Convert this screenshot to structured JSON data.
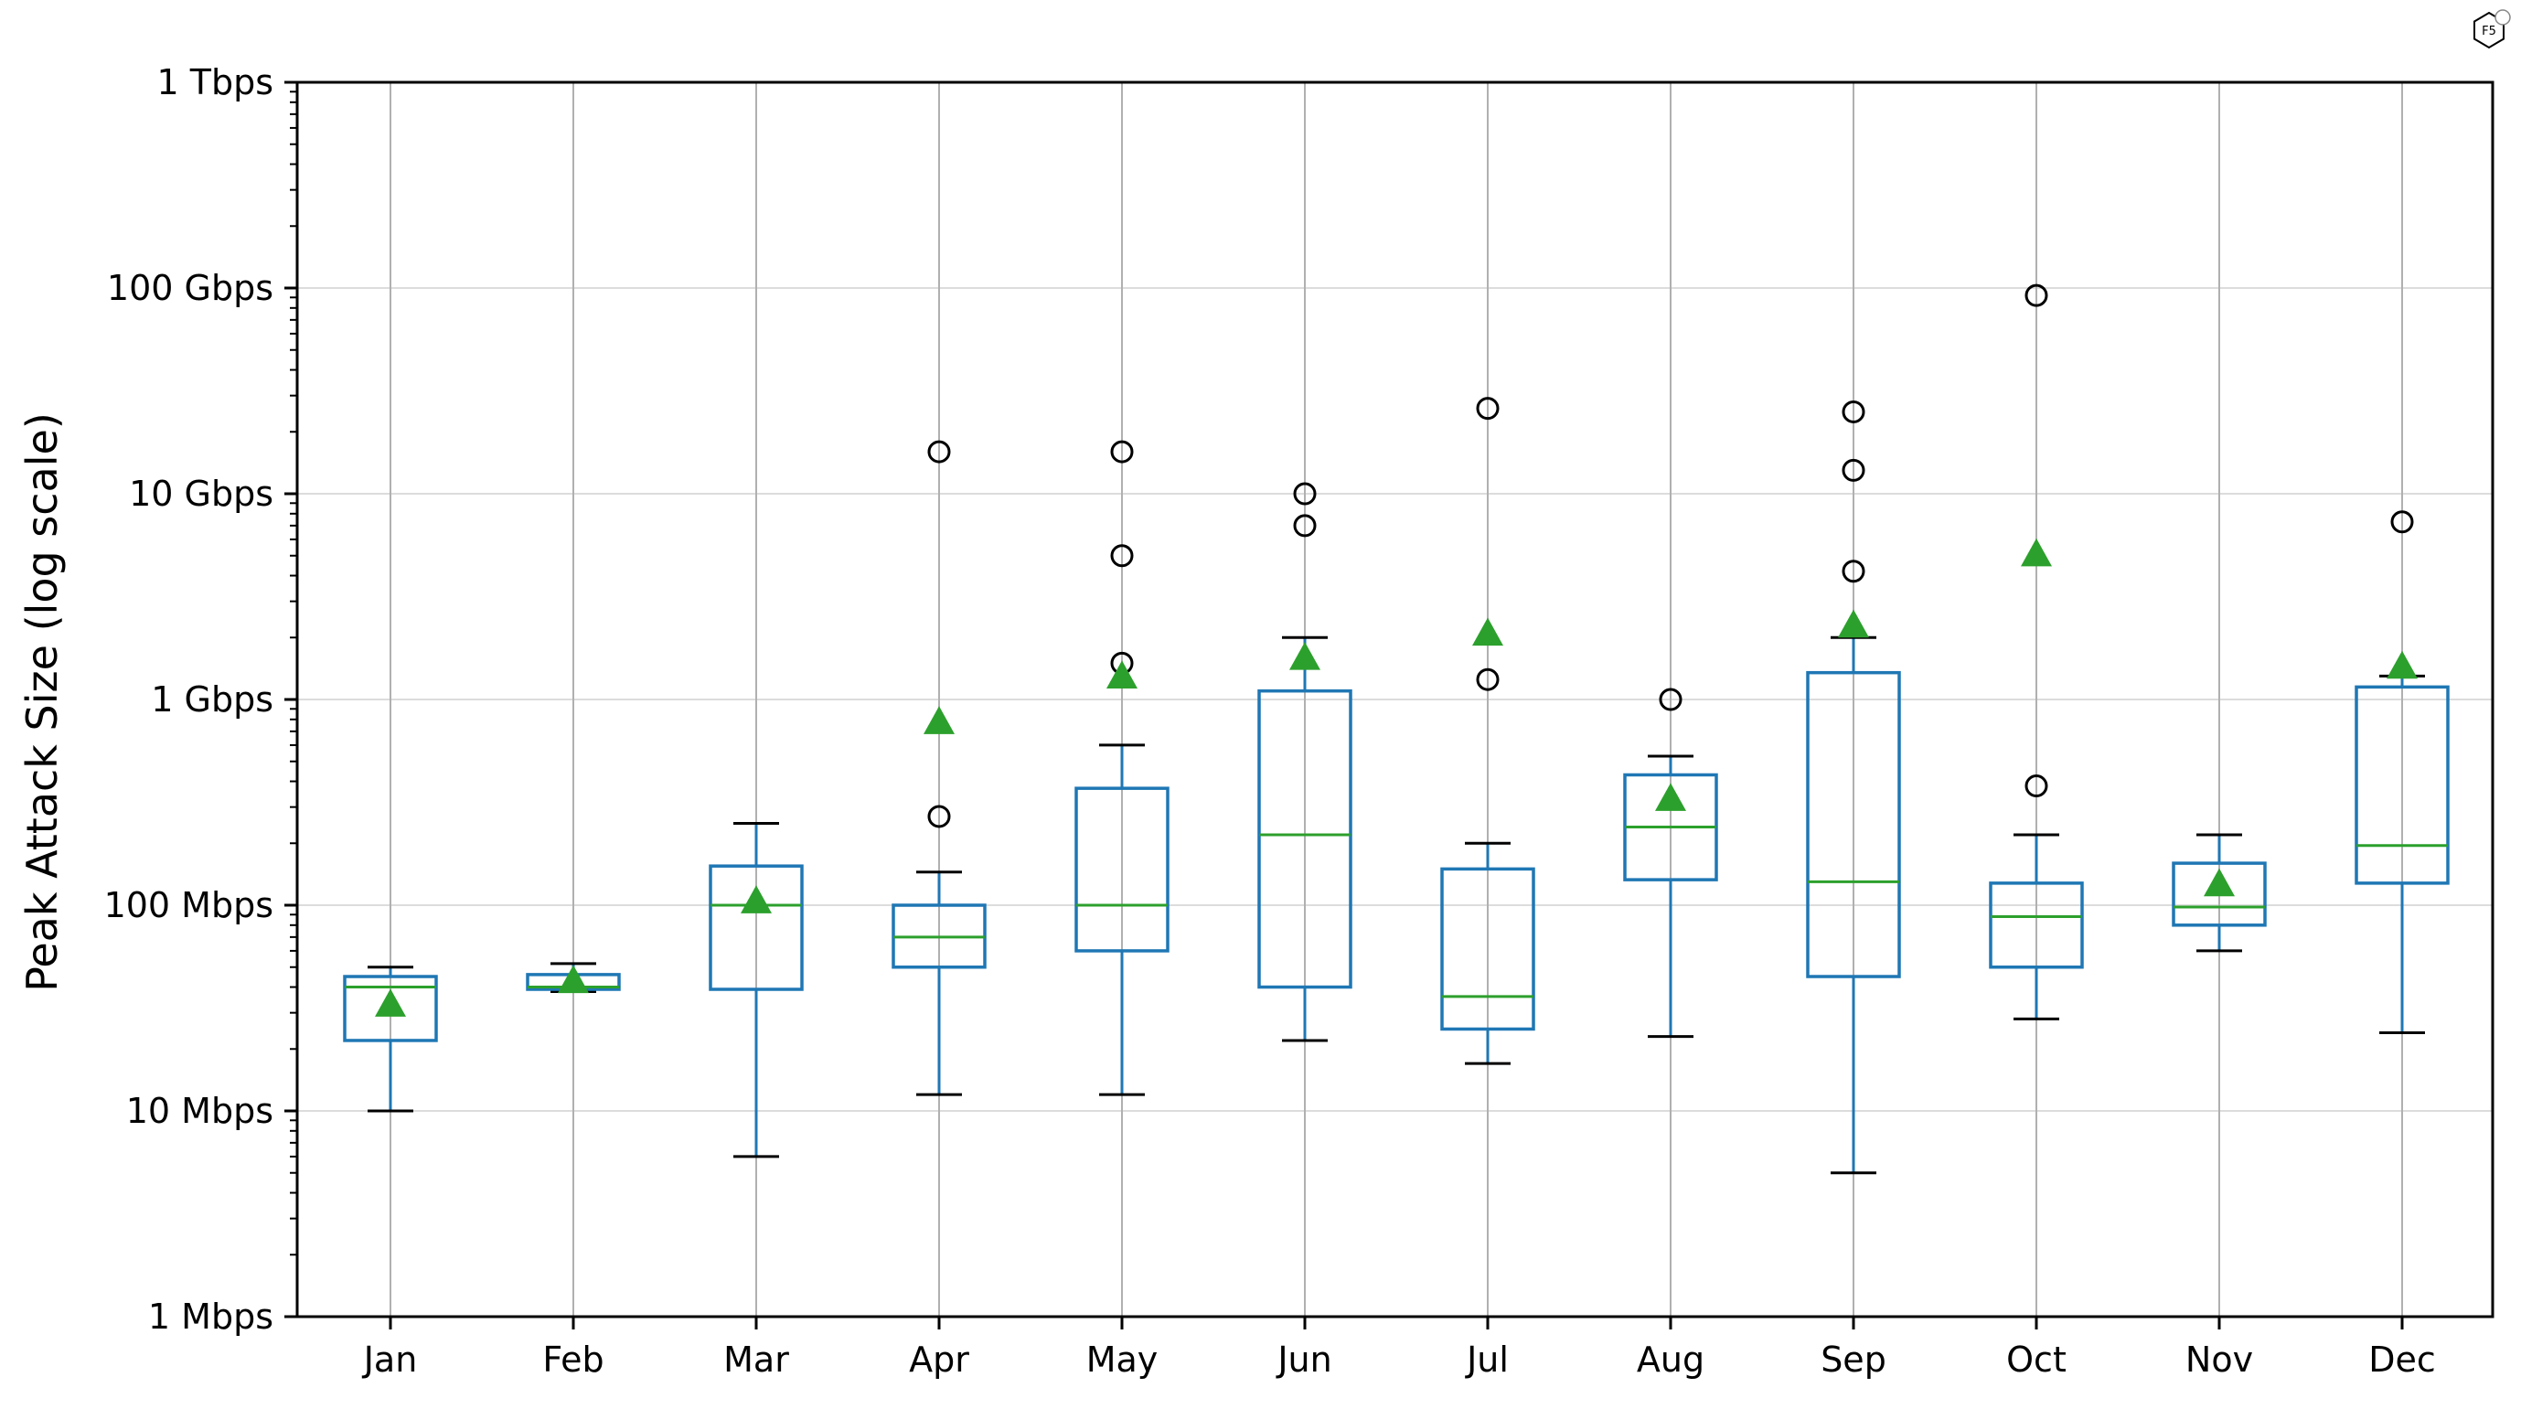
{
  "chart_data": {
    "type": "box",
    "ylabel": "Peak Attack Size (log scale)",
    "xlabel": "",
    "title": "",
    "yscale": "log",
    "ylim_mbps": [
      1,
      1000000
    ],
    "yticks": [
      {
        "value": 1,
        "label": "1 Mbps"
      },
      {
        "value": 10,
        "label": "10 Mbps"
      },
      {
        "value": 100,
        "label": "100 Mbps"
      },
      {
        "value": 1000,
        "label": "1 Gbps"
      },
      {
        "value": 10000,
        "label": "10 Gbps"
      },
      {
        "value": 100000,
        "label": "100 Gbps"
      },
      {
        "value": 1000000,
        "label": "1 Tbps"
      }
    ],
    "grid": true,
    "colors": {
      "box": "#1f77b4",
      "median": "#2ca02c",
      "mean": "#2ca02c",
      "whisker": "#1f77b4",
      "cap": "#000000",
      "flier": "#000000",
      "grid": "#b0b0b0"
    },
    "categories": [
      "Jan",
      "Feb",
      "Mar",
      "Apr",
      "May",
      "Jun",
      "Jul",
      "Aug",
      "Sep",
      "Oct",
      "Nov",
      "Dec"
    ],
    "boxes": [
      {
        "month": "Jan",
        "whisker_low": 10,
        "q1": 22,
        "median": 40,
        "q3": 45,
        "whisker_high": 50,
        "mean": 33,
        "fliers": []
      },
      {
        "month": "Feb",
        "whisker_low": 38,
        "q1": 39,
        "median": 40,
        "q3": 46,
        "whisker_high": 52,
        "mean": 43,
        "fliers": []
      },
      {
        "month": "Mar",
        "whisker_low": 6,
        "q1": 39,
        "median": 100,
        "q3": 155,
        "whisker_high": 250,
        "mean": 105,
        "fliers": []
      },
      {
        "month": "Apr",
        "whisker_low": 12,
        "q1": 50,
        "median": 70,
        "q3": 100,
        "whisker_high": 145,
        "mean": 780,
        "fliers": [
          270,
          16000
        ]
      },
      {
        "month": "May",
        "whisker_low": 12,
        "q1": 60,
        "median": 100,
        "q3": 370,
        "whisker_high": 600,
        "mean": 1300,
        "fliers": [
          1500,
          5000,
          16000
        ]
      },
      {
        "month": "Jun",
        "whisker_low": 22,
        "q1": 40,
        "median": 220,
        "q3": 1100,
        "whisker_high": 2000,
        "mean": 1600,
        "fliers": [
          7000,
          10000
        ]
      },
      {
        "month": "Jul",
        "whisker_low": 17,
        "q1": 25,
        "median": 36,
        "q3": 150,
        "whisker_high": 200,
        "mean": 2100,
        "fliers": [
          1250,
          26000
        ]
      },
      {
        "month": "Aug",
        "whisker_low": 23,
        "q1": 133,
        "median": 240,
        "q3": 430,
        "whisker_high": 530,
        "mean": 330,
        "fliers": [
          1000
        ]
      },
      {
        "month": "Sep",
        "whisker_low": 5,
        "q1": 45,
        "median": 130,
        "q3": 1350,
        "whisker_high": 2000,
        "mean": 2300,
        "fliers": [
          4200,
          13000,
          25000
        ]
      },
      {
        "month": "Oct",
        "whisker_low": 28,
        "q1": 50,
        "median": 88,
        "q3": 128,
        "whisker_high": 220,
        "mean": 5100,
        "fliers": [
          380,
          92000
        ]
      },
      {
        "month": "Nov",
        "whisker_low": 60,
        "q1": 80,
        "median": 98,
        "q3": 160,
        "whisker_high": 220,
        "mean": 127,
        "fliers": []
      },
      {
        "month": "Dec",
        "whisker_low": 24,
        "q1": 128,
        "median": 195,
        "q3": 1150,
        "whisker_high": 1300,
        "mean": 1450,
        "fliers": [
          7300
        ]
      }
    ]
  },
  "logo": {
    "text": "F5"
  }
}
